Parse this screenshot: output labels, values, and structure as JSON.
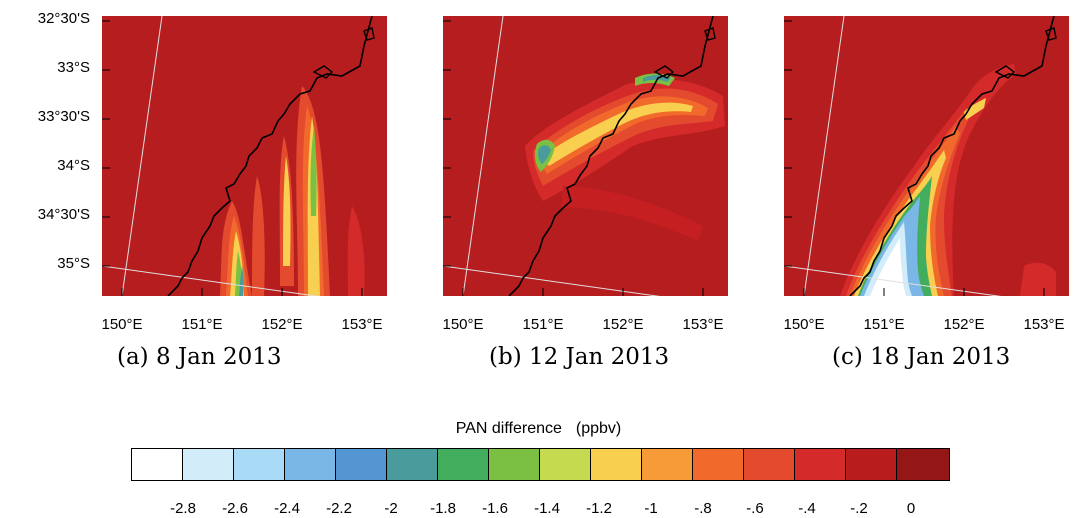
{
  "y_ticks": [
    "32°30'S",
    "33°S",
    "33°30'S",
    "34°S",
    "34°30'S",
    "35°S"
  ],
  "x_ticks": [
    "150°E",
    "151°E",
    "152°E",
    "153°E"
  ],
  "panels": [
    {
      "caption": "(a) 8 Jan 2013"
    },
    {
      "caption": "(b) 12 Jan 2013"
    },
    {
      "caption": "(c) 18 Jan 2013"
    }
  ],
  "colorbar": {
    "title": "PAN difference",
    "unit": "(ppbv)",
    "labels": [
      "-2.8",
      "-2.6",
      "-2.4",
      "-2.2",
      "-2",
      "-1.8",
      "-1.6",
      "-1.4",
      "-1.2",
      "-1",
      "-.8",
      "-.6",
      "-.4",
      "-.2",
      "0"
    ],
    "colors": [
      "#ffffff",
      "#d2ecf9",
      "#a9daf6",
      "#7ab7e6",
      "#5496d2",
      "#4a9c9c",
      "#43ad5e",
      "#7bc043",
      "#c6da4f",
      "#f9cf4f",
      "#f79b38",
      "#f16a2c",
      "#e44a2d",
      "#d42a2a",
      "#b91c1c",
      "#951616"
    ]
  },
  "colors": {
    "background_field": "#b51d1f",
    "coastline": "#000000",
    "grid_line": "#e0e0e0"
  }
}
